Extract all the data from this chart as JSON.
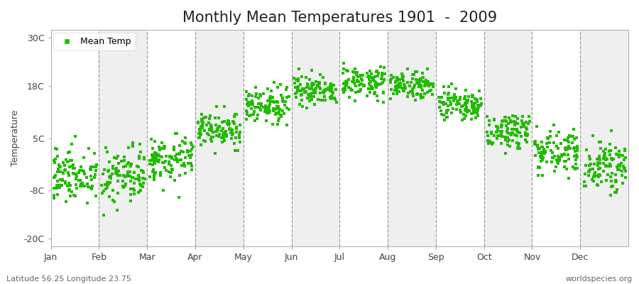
{
  "title": "Monthly Mean Temperatures 1901  -  2009",
  "ylabel": "Temperature",
  "xlabel_labels": [
    "Jan",
    "Feb",
    "Mar",
    "Apr",
    "May",
    "Jun",
    "Jul",
    "Aug",
    "Sep",
    "Oct",
    "Nov",
    "Dec"
  ],
  "ytick_positions": [
    -20,
    -8,
    5,
    18,
    30
  ],
  "ytick_labels": [
    "-20C",
    "-8C",
    "5C",
    "18C",
    "30C"
  ],
  "ylim": [
    -22,
    32
  ],
  "xlim": [
    0,
    12
  ],
  "dot_color": "#22BB00",
  "bg_color": "#FFFFFF",
  "band_color_light": "#FFFFFF",
  "band_color_dark": "#EFEFEF",
  "legend_label": "Mean Temp",
  "footer_left": "Latitude 56.25 Longitude 23.75",
  "footer_right": "worldspecies.org",
  "title_fontsize": 15,
  "label_fontsize": 9,
  "tick_fontsize": 9,
  "footer_fontsize": 8,
  "dot_size": 12,
  "monthly_means": [
    -4.0,
    -4.5,
    0.0,
    7.0,
    13.0,
    17.0,
    19.0,
    18.0,
    13.0,
    7.0,
    2.0,
    -2.0
  ],
  "monthly_stds": [
    3.5,
    3.8,
    2.8,
    2.2,
    2.0,
    2.0,
    1.8,
    1.8,
    2.0,
    2.2,
    2.5,
    3.0
  ],
  "n_years": 109
}
